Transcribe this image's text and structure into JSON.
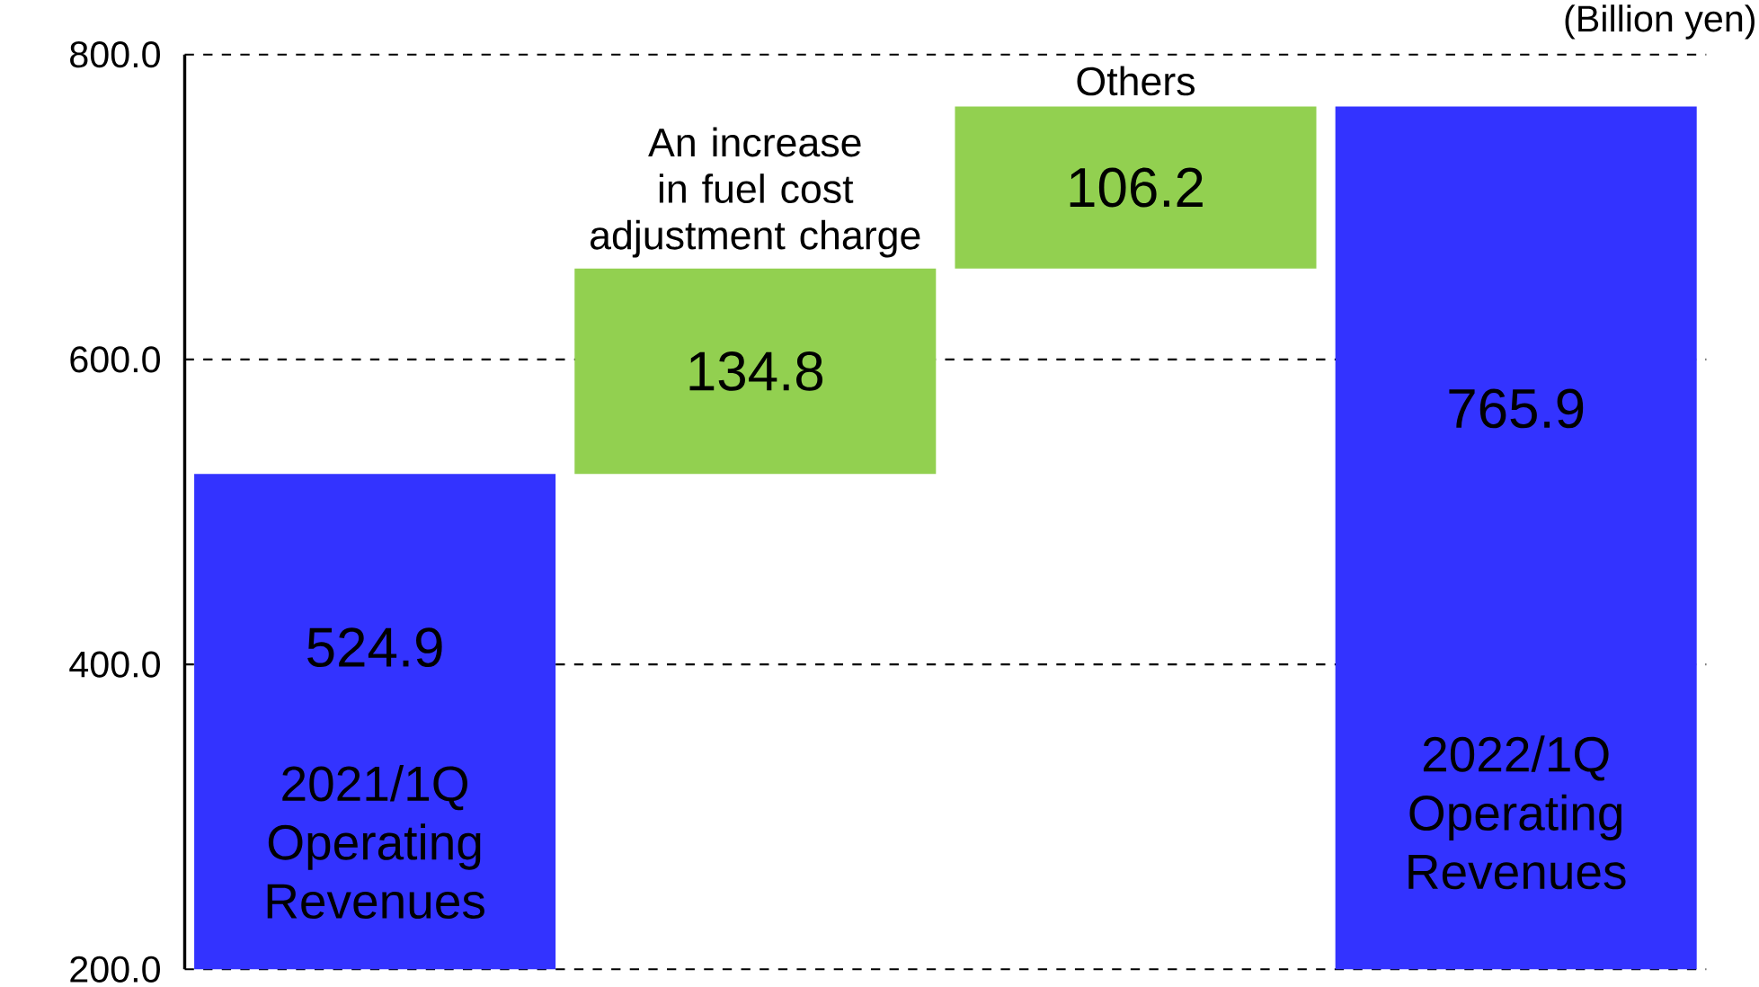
{
  "chart_data": {
    "type": "bar",
    "categories": [
      "2021/1Q Operating Revenues",
      "An increase in fuel cost adjustment charge",
      "Others",
      "2022/1Q Operating Revenues"
    ],
    "values": [
      524.9,
      134.8,
      106.2,
      765.9
    ],
    "base": [
      0,
      524.9,
      659.7,
      0
    ],
    "colors": [
      "#3333ff",
      "#92d050",
      "#92d050",
      "#3333ff"
    ],
    "data_labels": true,
    "ylim": [
      200,
      800
    ],
    "yticks": [
      {
        "value": 200,
        "label": "200.0"
      },
      {
        "value": 400,
        "label": "400.0"
      },
      {
        "value": 600,
        "label": "600.0"
      },
      {
        "value": 800,
        "label": "800.0"
      }
    ],
    "grid": "y",
    "annotations": [
      "(Billion yen)"
    ]
  }
}
